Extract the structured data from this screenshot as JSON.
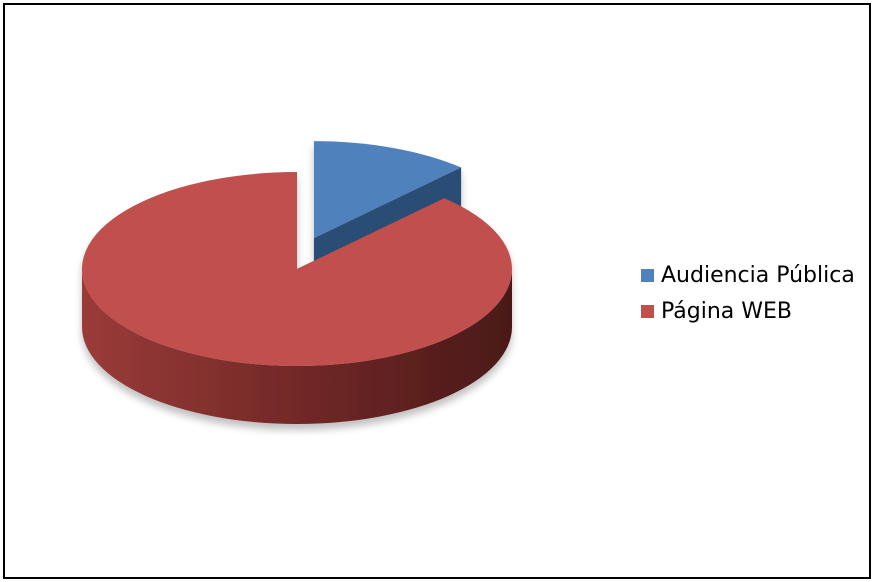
{
  "chart_data": {
    "type": "pie",
    "title": "",
    "categories": [
      "Audiencia Pública",
      "Página WEB"
    ],
    "values": [
      12,
      88
    ],
    "colors": [
      "#4f81bd",
      "#c0504d"
    ],
    "side_colors": [
      "#2c4d75",
      "#7a2e2c"
    ],
    "exploded_slice": "Audiencia Pública",
    "style": "3d",
    "legend_position": "right",
    "grid": false
  }
}
